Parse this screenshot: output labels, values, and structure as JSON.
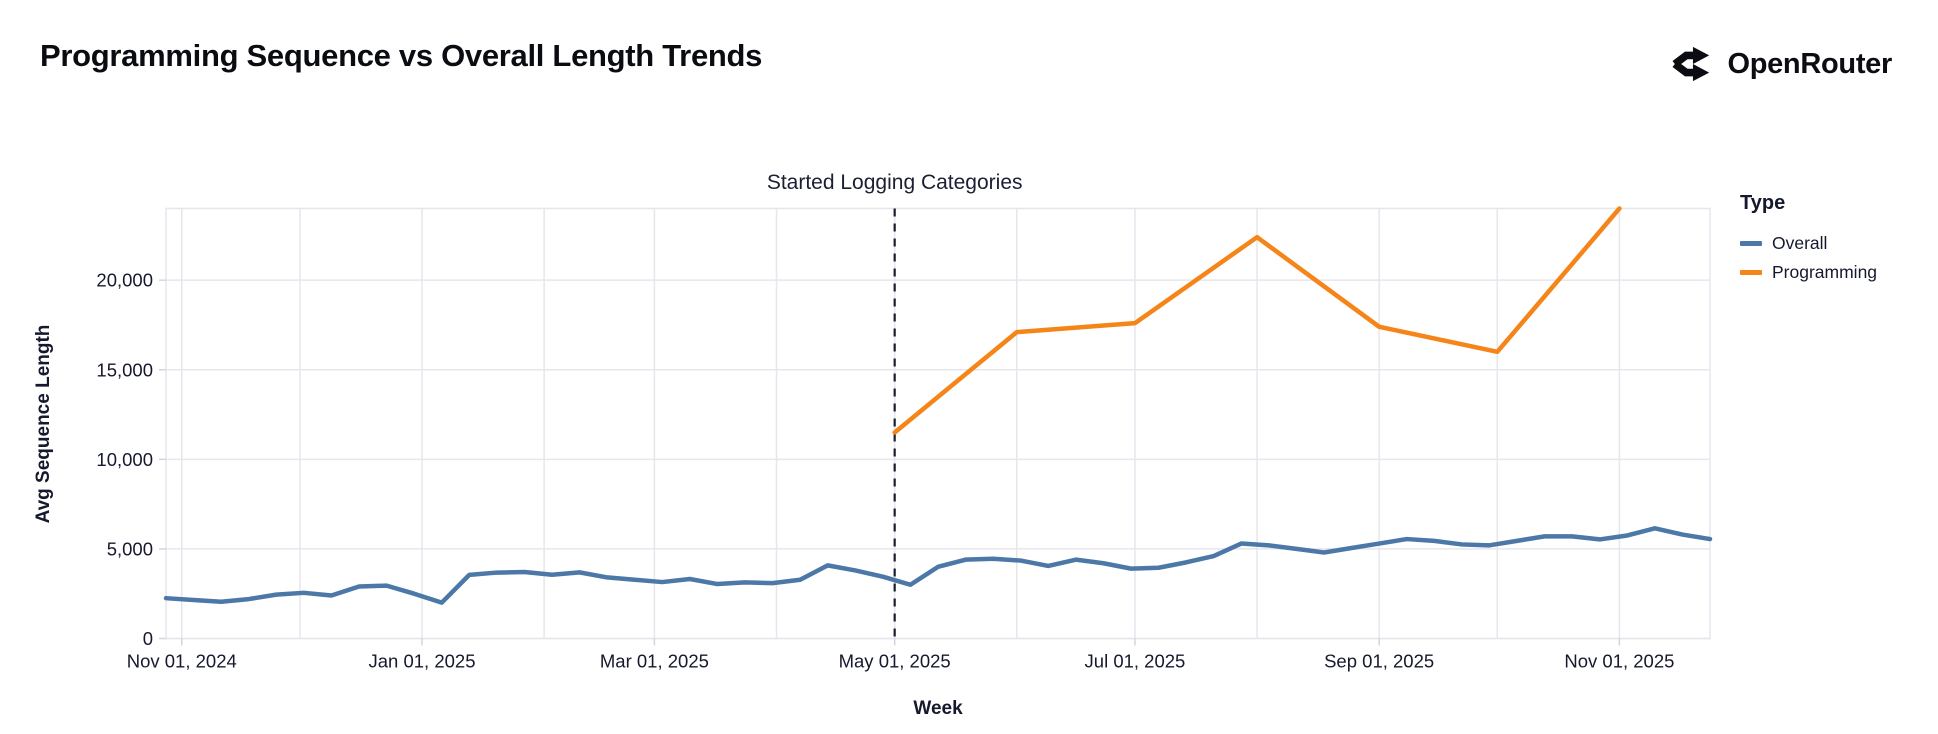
{
  "header": {
    "title": "Programming Sequence vs Overall Length Trends",
    "brand": "OpenRouter"
  },
  "annotation": {
    "text": "Started Logging Categories"
  },
  "legend": {
    "title": "Type",
    "items": [
      {
        "label": "Overall",
        "color": "#4c78a8"
      },
      {
        "label": "Programming",
        "color": "#f58518"
      }
    ]
  },
  "chart_data": {
    "type": "line",
    "title": "Programming Sequence vs Overall Length Trends",
    "xlabel": "Week",
    "ylabel": "Avg Sequence Length",
    "grid": true,
    "legend_position": "right",
    "x_domain_days": [
      0,
      392
    ],
    "x_domain_note": "days since week of Oct 28, 2024; right edge ~ Nov 24, 2025",
    "ylim": [
      0,
      24000
    ],
    "y_ticks": [
      0,
      5000,
      10000,
      15000,
      20000
    ],
    "x_ticks": [
      {
        "day": 4,
        "label": "Nov 01, 2024"
      },
      {
        "day": 65,
        "label": "Jan 01, 2025"
      },
      {
        "day": 124,
        "label": "Mar 01, 2025"
      },
      {
        "day": 185,
        "label": "May 01, 2025"
      },
      {
        "day": 246,
        "label": "Jul 01, 2025"
      },
      {
        "day": 308,
        "label": "Sep 01, 2025"
      },
      {
        "day": 369,
        "label": "Nov 01, 2025"
      }
    ],
    "month_grid_days": [
      4,
      34,
      65,
      96,
      124,
      155,
      185,
      216,
      246,
      277,
      308,
      338,
      369
    ],
    "annotation_day": 185,
    "annotation_label": "Started Logging Categories",
    "series": [
      {
        "name": "Overall",
        "color": "#4c78a8",
        "x_start_day": 0,
        "x_step_days": 7,
        "values": [
          2250,
          2150,
          2050,
          2200,
          2450,
          2550,
          2400,
          2900,
          2950,
          2500,
          2000,
          3550,
          3680,
          3710,
          3560,
          3690,
          3410,
          3280,
          3150,
          3320,
          3040,
          3130,
          3090,
          3280,
          4080,
          3800,
          3450,
          3000,
          4000,
          4400,
          4450,
          4350,
          4050,
          4400,
          4200,
          3900,
          3950,
          4250,
          4600,
          5300,
          5200,
          5000,
          4800,
          5050,
          5300,
          5550,
          5450,
          5250,
          5200,
          5450,
          5700,
          5700,
          5530,
          5750,
          6150,
          5800,
          5550
        ]
      },
      {
        "name": "Programming",
        "color": "#f58518",
        "x_days": [
          185,
          216,
          246,
          277,
          308,
          338,
          369
        ],
        "values": [
          11500,
          17100,
          17600,
          22400,
          17400,
          16000,
          24000
        ]
      }
    ]
  }
}
